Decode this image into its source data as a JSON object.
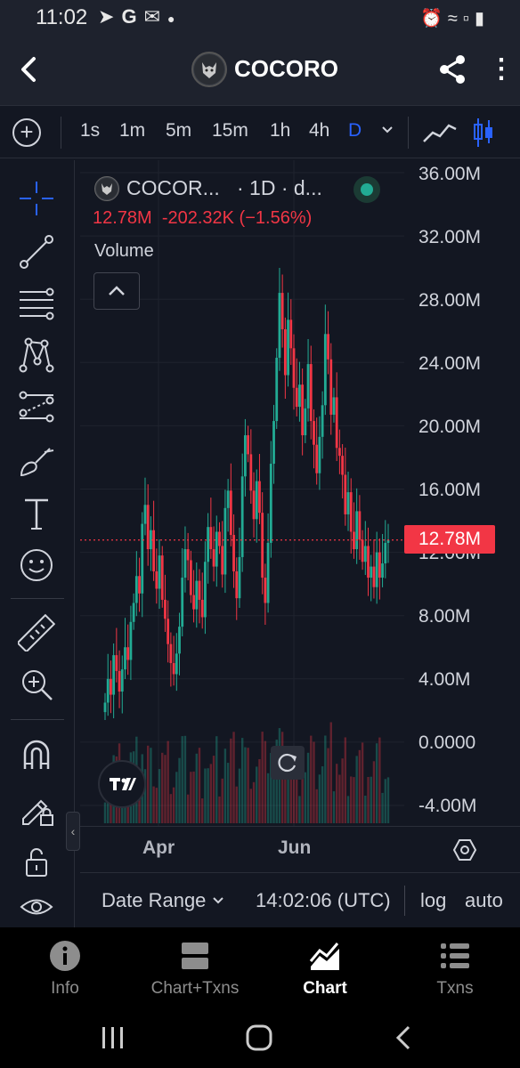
{
  "status_bar": {
    "time": "11:02",
    "left_icons": [
      "telegram-icon",
      "google-icon",
      "mail-icon",
      "dot-icon"
    ],
    "right_icons": [
      "alarm-icon",
      "wifi-icon",
      "signal-icon",
      "battery-icon"
    ]
  },
  "header": {
    "title": "COCORO",
    "back_icon": "chevron-left-icon",
    "share_icon": "share-icon",
    "menu_icon": "more-vertical-icon"
  },
  "toolbar": {
    "timeframes": [
      "1s",
      "1m",
      "5m",
      "15m",
      "1h",
      "4h",
      "D"
    ],
    "active_timeframe": "D",
    "add_icon": "plus-circle-icon",
    "chart_type_icons": [
      "line-chart-icon",
      "candlestick-icon"
    ]
  },
  "sidebar": {
    "tools": [
      "crosshair-icon",
      "trend-line-icon",
      "fib-retracement-icon",
      "pattern-icon",
      "prediction-icon",
      "brush-icon",
      "text-icon",
      "emoji-icon",
      "ruler-icon",
      "zoom-in-icon",
      "magnet-icon",
      "lock-drawing-icon",
      "unlock-icon",
      "eye-icon"
    ]
  },
  "legend": {
    "symbol": "COCOR...",
    "interval": "· 1D · d...",
    "values": "12.78M  -202.32K (−1.56%)",
    "volume_label": "Volume"
  },
  "price_scale": {
    "labels": [
      "36.00M",
      "32.00M",
      "28.00M",
      "24.00M",
      "20.00M",
      "16.00M",
      "12.00M",
      "8.00M",
      "4.00M",
      "0.0000",
      "-4.00M"
    ],
    "last_price": "12.78M"
  },
  "time_axis": {
    "labels": [
      "Apr",
      "Jun"
    ]
  },
  "bottom_controls": {
    "date_range": "Date Range",
    "clock": "14:02:06 (UTC)",
    "log": "log",
    "auto": "auto"
  },
  "nav": {
    "items": [
      {
        "label": "Info",
        "icon": "info-icon"
      },
      {
        "label": "Chart+Txns",
        "icon": "split-view-icon"
      },
      {
        "label": "Chart",
        "icon": "area-chart-icon"
      },
      {
        "label": "Txns",
        "icon": "list-icon"
      }
    ],
    "active": "Chart"
  },
  "colors": {
    "up": "#22ab94",
    "down": "#f23645",
    "accent": "#2962ff",
    "background": "#131722"
  },
  "chart_data": {
    "type": "candlestick",
    "interval": "1D",
    "y_axis_range": [
      -4000000,
      36000000
    ],
    "y_ticks": [
      -4000000,
      0,
      4000000,
      8000000,
      12000000,
      16000000,
      20000000,
      24000000,
      28000000,
      32000000,
      36000000
    ],
    "x_ticks": [
      "Apr",
      "Jun"
    ],
    "last_price": 12780000,
    "change": -202320,
    "change_percent": -1.56,
    "close_series_approx": [
      2.5,
      4.0,
      3.0,
      5.5,
      4.5,
      3.2,
      4.6,
      6.0,
      5.2,
      7.6,
      8.8,
      10.5,
      9.4,
      13.8,
      15.0,
      12.2,
      13.4,
      10.8,
      9.7,
      11.8,
      9.0,
      7.8,
      6.2,
      5.0,
      4.3,
      5.6,
      7.3,
      10.4,
      12.2,
      11.5,
      9.3,
      8.4,
      10.2,
      9.0,
      7.9,
      11.4,
      13.6,
      12.2,
      11.1,
      13.3,
      12.4,
      10.6,
      14.8,
      15.9,
      13.1,
      10.8,
      9.1,
      11.7,
      16.8,
      19.4,
      18.2,
      15.9,
      14.1,
      16.5,
      14.5,
      10.4,
      8.8,
      12.6,
      17.6,
      20.3,
      24.3,
      28.4,
      26.1,
      23.2,
      26.7,
      24.9,
      22.4,
      21.2,
      22.6,
      19.4,
      21.1,
      23.9,
      20.3,
      18.8,
      17.0,
      19.3,
      21.3,
      25.8,
      24.2,
      20.7,
      21.8,
      18.6,
      18.1,
      16.9,
      14.4,
      15.8,
      13.3,
      12.2,
      14.6,
      12.8,
      11.4,
      12.4,
      10.4,
      11.1,
      9.8,
      12.0,
      10.4,
      11.3,
      12.6,
      12.78
    ]
  }
}
